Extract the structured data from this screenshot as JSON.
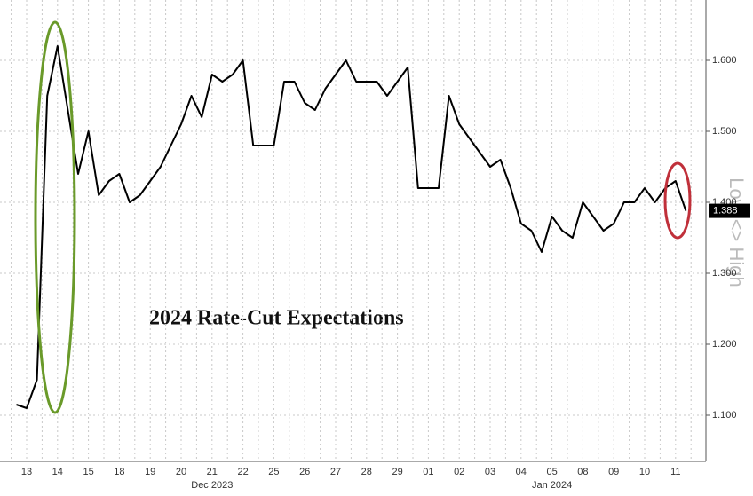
{
  "chart_data": {
    "type": "line",
    "annotation": "2024 Rate-Cut Expectations",
    "y_axis_label": "Low <> High",
    "categories": [
      null,
      "13",
      null,
      null,
      "14",
      null,
      null,
      "15",
      null,
      null,
      "18",
      null,
      null,
      "19",
      null,
      null,
      "20",
      null,
      null,
      "21",
      null,
      null,
      "22",
      null,
      null,
      "25",
      null,
      null,
      "26",
      null,
      null,
      "27",
      null,
      null,
      "28",
      null,
      null,
      "29",
      null,
      null,
      "01",
      null,
      null,
      "02",
      null,
      null,
      "03",
      null,
      null,
      "04",
      null,
      null,
      "05",
      null,
      null,
      "08",
      null,
      null,
      "09",
      null,
      null,
      "10",
      null,
      null,
      "11",
      null
    ],
    "month_labels": [
      "Dec 2023",
      "Jan 2024"
    ],
    "series": [
      {
        "color": "#000000",
        "values": [
          1.115,
          1.11,
          1.15,
          1.55,
          1.62,
          1.53,
          1.44,
          1.5,
          1.41,
          1.43,
          1.44,
          1.4,
          1.41,
          1.43,
          1.45,
          1.48,
          1.51,
          1.55,
          1.52,
          1.58,
          1.57,
          1.58,
          1.6,
          1.48,
          1.48,
          1.48,
          1.57,
          1.57,
          1.54,
          1.53,
          1.56,
          1.58,
          1.6,
          1.57,
          1.57,
          1.57,
          1.55,
          1.57,
          1.59,
          1.42,
          1.42,
          1.42,
          1.55,
          1.51,
          1.49,
          1.47,
          1.45,
          1.46,
          1.42,
          1.37,
          1.36,
          1.33,
          1.38,
          1.36,
          1.35,
          1.4,
          1.38,
          1.36,
          1.37,
          1.4,
          1.4,
          1.42,
          1.4,
          1.42,
          1.43,
          1.388
        ],
        "value_labels": [
          null,
          null,
          null,
          null,
          null,
          null,
          null,
          null,
          null,
          null,
          null,
          null,
          null,
          null,
          null,
          null,
          null,
          null,
          null,
          null,
          null,
          null,
          null,
          null,
          null,
          null,
          null,
          null,
          null,
          null,
          null,
          null,
          null,
          null,
          null,
          null,
          null,
          null,
          null,
          null,
          null,
          null,
          null,
          null,
          null,
          null,
          null,
          null,
          null,
          null,
          null,
          null,
          null,
          null,
          null,
          null,
          null,
          null,
          null,
          null,
          null,
          null,
          null,
          null,
          null,
          "1.388"
        ]
      }
    ],
    "ylim": [
      1.035,
      1.685
    ],
    "yticks": [
      {
        "value": 1.1,
        "label": "1.100"
      },
      {
        "value": 1.2,
        "label": "1.200"
      },
      {
        "value": 1.3,
        "label": "1.300"
      },
      {
        "value": 1.4,
        "label": "1.400"
      },
      {
        "value": 1.5,
        "label": "1.500"
      },
      {
        "value": 1.6,
        "label": "1.600"
      }
    ],
    "grid": true
  }
}
